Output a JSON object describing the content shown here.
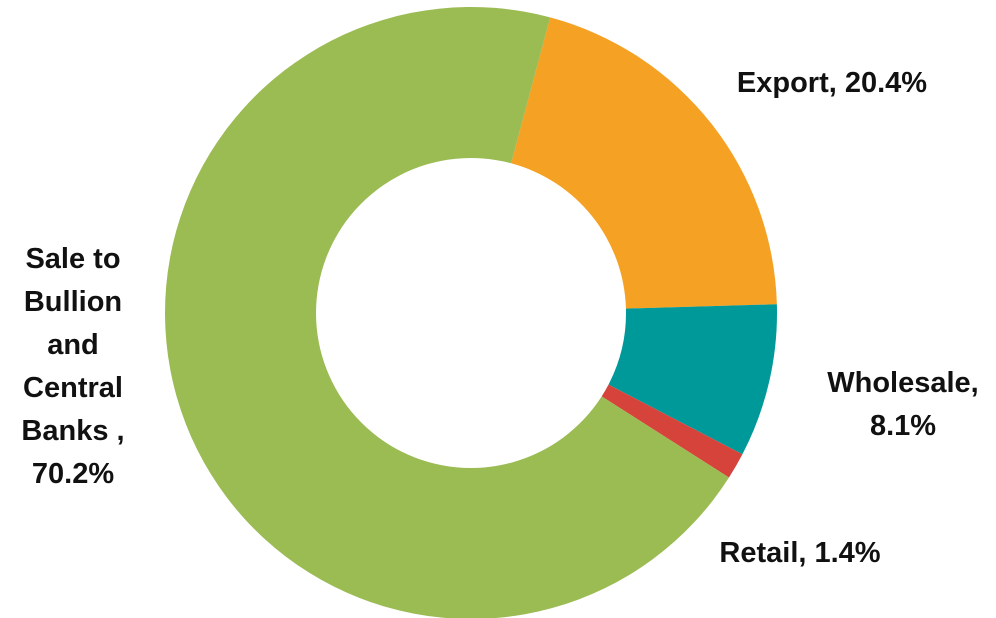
{
  "chart_data": {
    "type": "pie",
    "variant": "donut",
    "title": "",
    "categories": [
      "Export",
      "Wholesale",
      "Retail",
      "Sale to Bullion and Central Banks"
    ],
    "values": [
      20.4,
      8.1,
      1.4,
      70.2
    ],
    "colors": [
      "#f4a124",
      "#00999a",
      "#d5433b",
      "#9bbb53"
    ],
    "label_lines": [
      [
        "Export, 20.4%"
      ],
      [
        "Wholesale,",
        "8.1%"
      ],
      [
        "Retail, 1.4%"
      ],
      [
        "Sale to",
        "Bullion",
        "and",
        "Central",
        "Banks ,",
        "70.2%"
      ]
    ],
    "start_angle_deg": 15,
    "direction": "clockwise",
    "legend": "none"
  }
}
